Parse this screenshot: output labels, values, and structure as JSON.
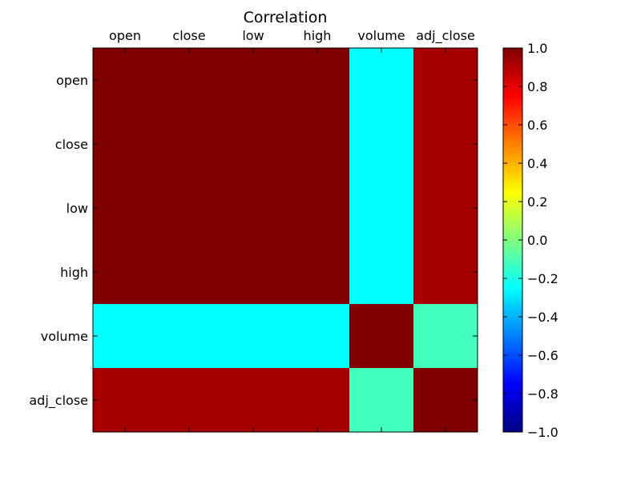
{
  "chart_data": {
    "type": "heatmap",
    "title": "Correlation",
    "xlabel": "",
    "ylabel": "",
    "x_categories": [
      "open",
      "close",
      "low",
      "high",
      "volume",
      "adj_close"
    ],
    "y_categories": [
      "open",
      "close",
      "low",
      "high",
      "volume",
      "adj_close"
    ],
    "values": [
      [
        1.0,
        1.0,
        1.0,
        1.0,
        -0.25,
        0.92
      ],
      [
        1.0,
        1.0,
        1.0,
        1.0,
        -0.25,
        0.92
      ],
      [
        1.0,
        1.0,
        1.0,
        1.0,
        -0.25,
        0.92
      ],
      [
        1.0,
        1.0,
        1.0,
        1.0,
        -0.25,
        0.92
      ],
      [
        -0.25,
        -0.25,
        -0.25,
        -0.25,
        1.0,
        -0.12
      ],
      [
        0.92,
        0.92,
        0.92,
        0.92,
        -0.12,
        1.0
      ]
    ],
    "colormap": "jet",
    "colorbar": {
      "range": [
        -1.0,
        1.0
      ],
      "ticks": [
        -1.0,
        -0.8,
        -0.6,
        -0.4,
        -0.2,
        0.0,
        0.2,
        0.4,
        0.6,
        0.8,
        1.0
      ],
      "tick_labels": [
        "−1.0",
        "−0.8",
        "−0.6",
        "−0.4",
        "−0.2",
        "0.0",
        "0.2",
        "0.4",
        "0.6",
        "0.8",
        "1.0"
      ],
      "placement": "right"
    },
    "x_tick_position": "top",
    "grid": false
  }
}
